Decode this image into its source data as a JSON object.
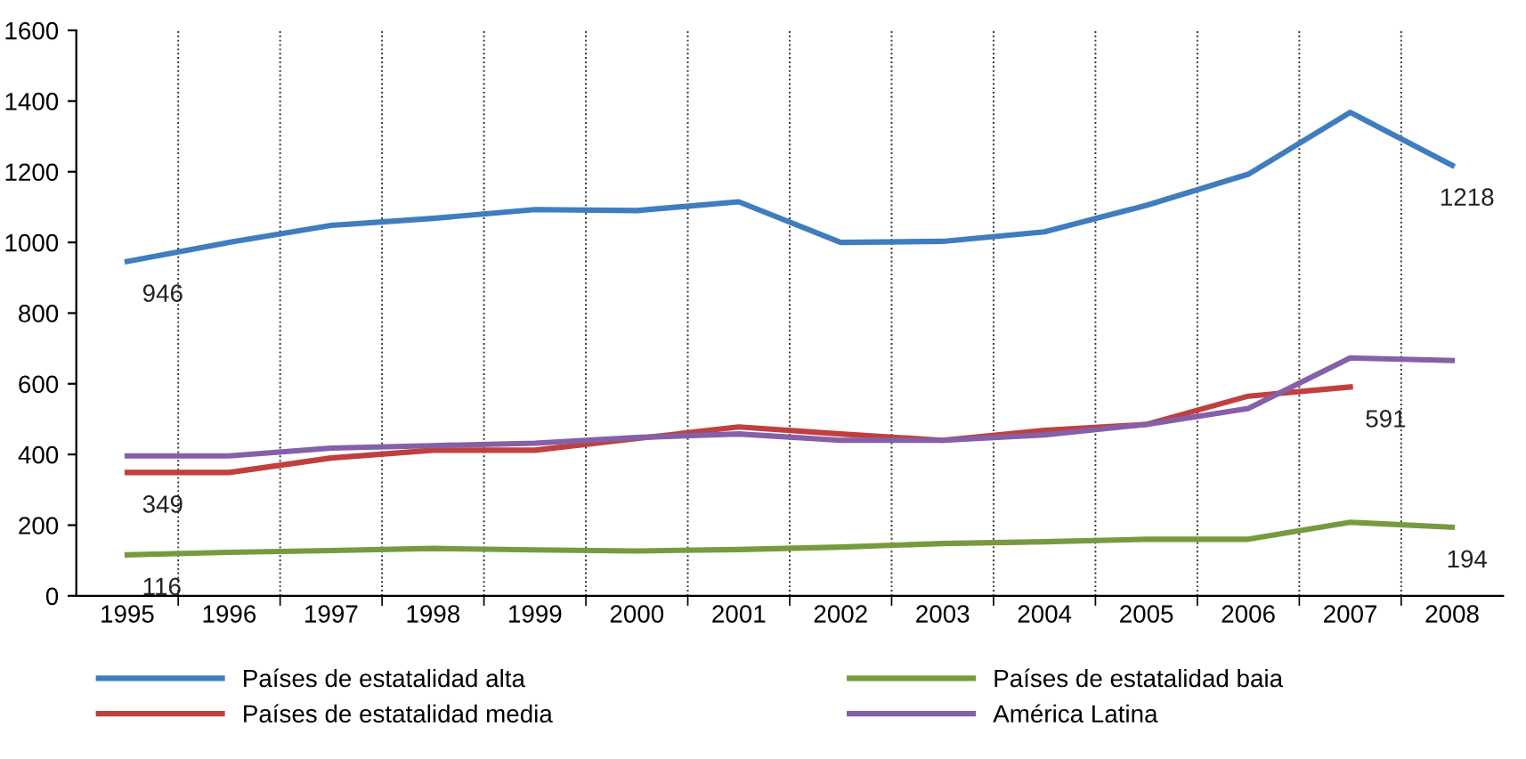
{
  "chart_data": {
    "type": "line",
    "categories": [
      "1995",
      "1996",
      "1997",
      "1998",
      "1999",
      "2000",
      "2001",
      "2002",
      "2003",
      "2004",
      "2005",
      "2006",
      "2007",
      "2008"
    ],
    "ylim": [
      0,
      1600
    ],
    "yticks": [
      0,
      200,
      400,
      600,
      800,
      1000,
      1200,
      1400,
      1600
    ],
    "grid": "x",
    "legend": "bottom",
    "line_style": "solid",
    "series": [
      {
        "name": "Países de estatalidad alta",
        "color": "#3f7dbf",
        "values": [
          946,
          1000,
          1048,
          1068,
          1093,
          1090,
          1115,
          1000,
          1003,
          1030,
          1105,
          1193,
          1368,
          1218
        ],
        "value_labels": [
          "946",
          null,
          null,
          null,
          null,
          null,
          null,
          null,
          null,
          null,
          null,
          null,
          null,
          "1218"
        ]
      },
      {
        "name": "Países de estatalidad media",
        "color": "#c0403f",
        "values": [
          349,
          349,
          390,
          412,
          412,
          445,
          478,
          458,
          440,
          468,
          485,
          565,
          591,
          null
        ],
        "value_labels": [
          "349",
          null,
          null,
          null,
          null,
          null,
          null,
          null,
          null,
          null,
          null,
          null,
          "591",
          null
        ]
      },
      {
        "name": "Países de estatalidad baia",
        "color": "#789a3f",
        "values": [
          116,
          123,
          128,
          134,
          130,
          127,
          131,
          138,
          148,
          153,
          160,
          160,
          208,
          194
        ],
        "value_labels": [
          "116",
          null,
          null,
          null,
          null,
          null,
          null,
          null,
          null,
          null,
          null,
          null,
          null,
          "194"
        ]
      },
      {
        "name": "América Latina",
        "color": "#8560a8",
        "values": [
          396,
          396,
          418,
          425,
          432,
          448,
          458,
          440,
          440,
          455,
          485,
          530,
          673,
          666
        ]
      }
    ]
  }
}
